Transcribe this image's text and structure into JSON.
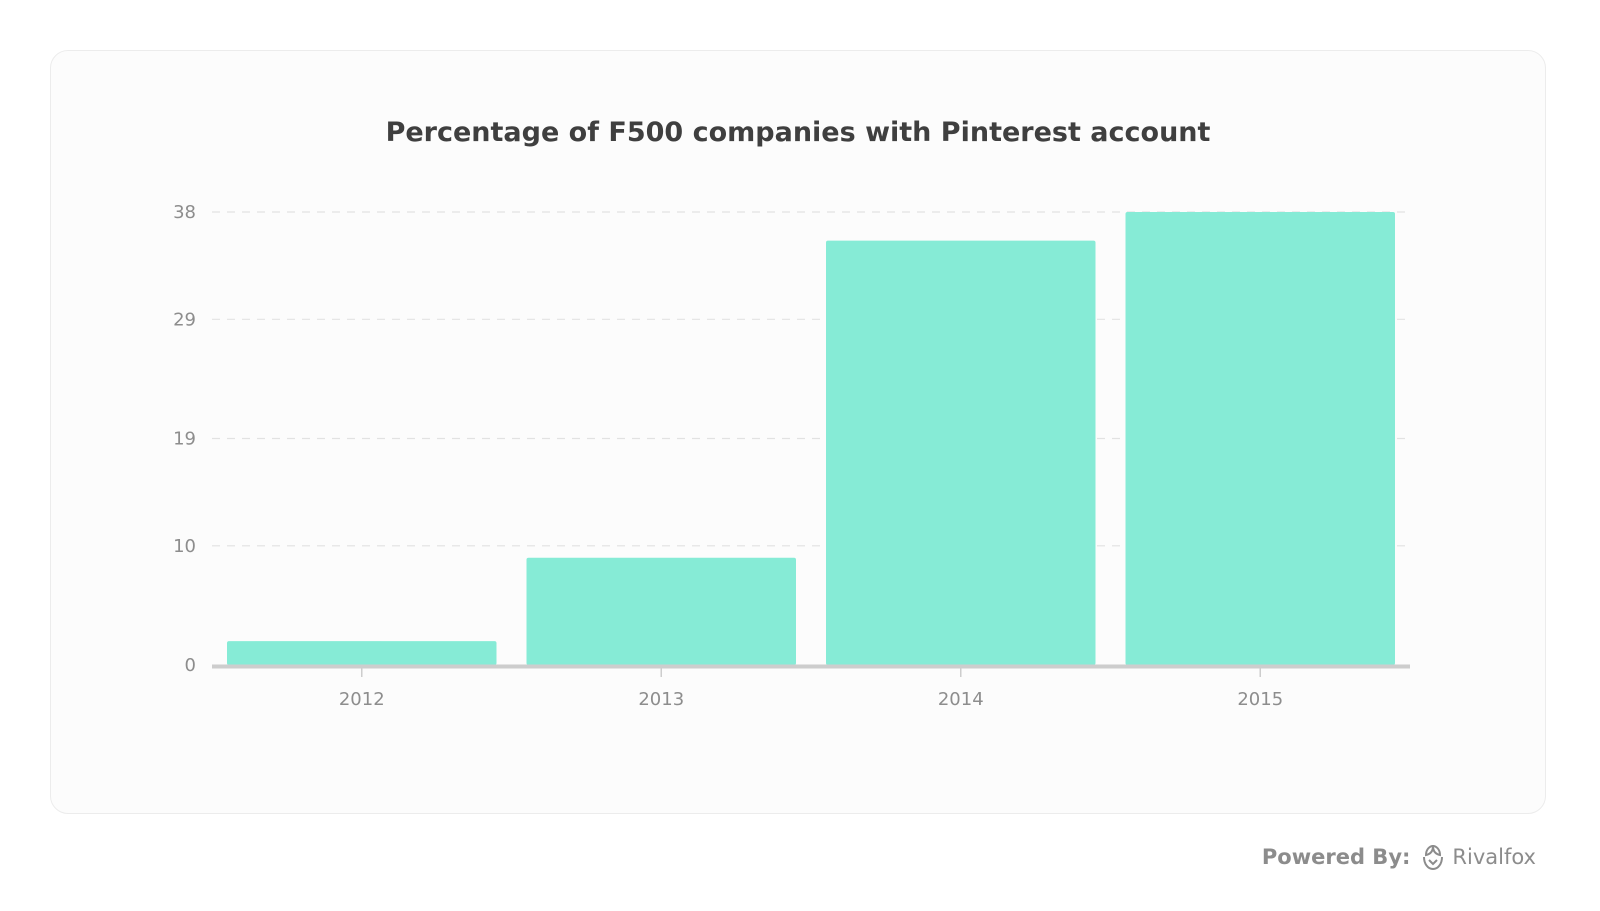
{
  "chart_data": {
    "type": "bar",
    "title": "Percentage of F500 companies with Pinterest account",
    "categories": [
      "2012",
      "2013",
      "2014",
      "2015"
    ],
    "values": [
      2,
      9,
      35.6,
      38
    ],
    "ylim": [
      0,
      38
    ],
    "yticks": [
      0,
      10,
      19,
      29,
      38
    ],
    "xlabel": "",
    "ylabel": "",
    "grid": true,
    "bar_color": "#86ebd6"
  },
  "footer": {
    "powered_label": "Powered By:",
    "brand": "Rivalfox",
    "brand_icon": "rivalfox-logo-icon"
  }
}
